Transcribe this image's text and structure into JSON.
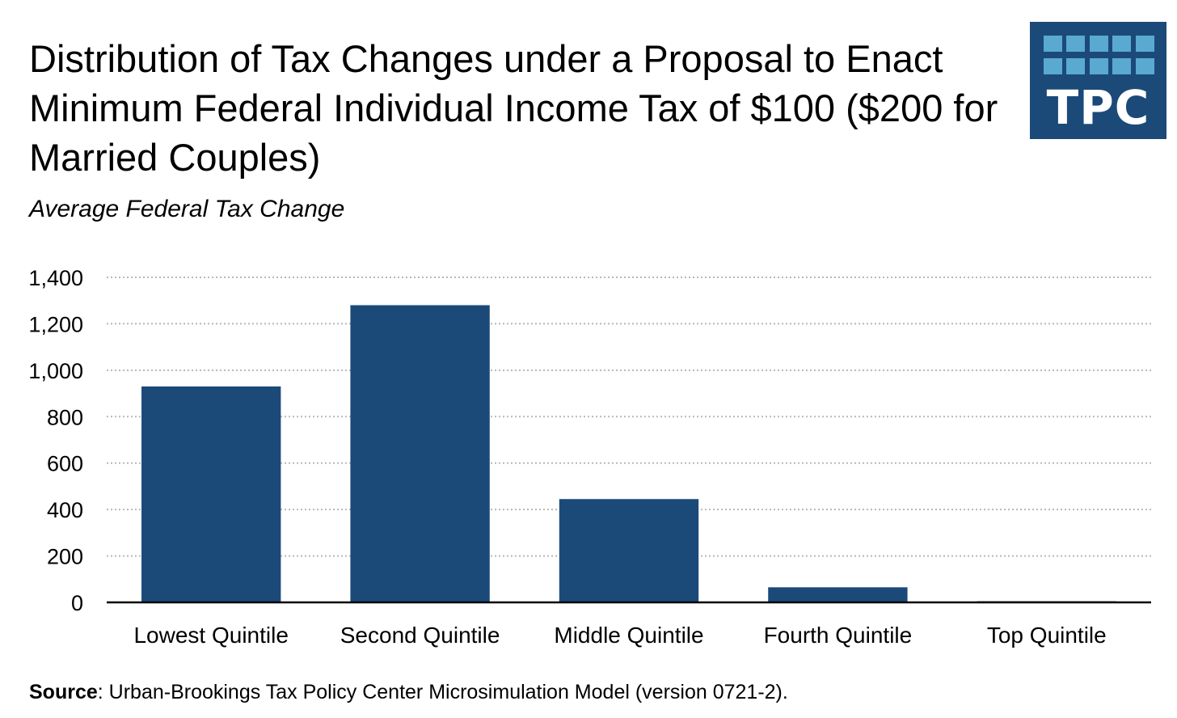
{
  "header": {
    "title": "Distribution of Tax Changes under a Proposal to Enact Minimum Federal Individual Income Tax of $100 ($200 for Married Couples)",
    "subtitle": "Average Federal Tax Change"
  },
  "logo": {
    "text": "TPC",
    "bg_color": "#1b4a79",
    "grid_color": "#5aa9d1"
  },
  "source": {
    "label": "Source",
    "text": ": Urban-Brookings Tax Policy Center Microsimulation Model (version 0721-2)."
  },
  "chart_data": {
    "type": "bar",
    "title": "Distribution of Tax Changes under a Proposal to Enact Minimum Federal Individual Income Tax of $100 ($200 for Married Couples)",
    "subtitle": "Average Federal Tax Change",
    "xlabel": "",
    "ylabel": "",
    "categories": [
      "Lowest Quintile",
      "Second Quintile",
      "Middle Quintile",
      "Fourth Quintile",
      "Top Quintile"
    ],
    "values": [
      930,
      1280,
      445,
      65,
      5
    ],
    "ylim": [
      0,
      1400
    ],
    "yticks": [
      0,
      200,
      400,
      600,
      800,
      1000,
      1200,
      1400
    ],
    "ytick_labels": [
      "0",
      "200",
      "400",
      "600",
      "800",
      "1,000",
      "1,200",
      "1,400"
    ],
    "grid": true,
    "legend": "none",
    "bar_color": "#1b4a79"
  }
}
